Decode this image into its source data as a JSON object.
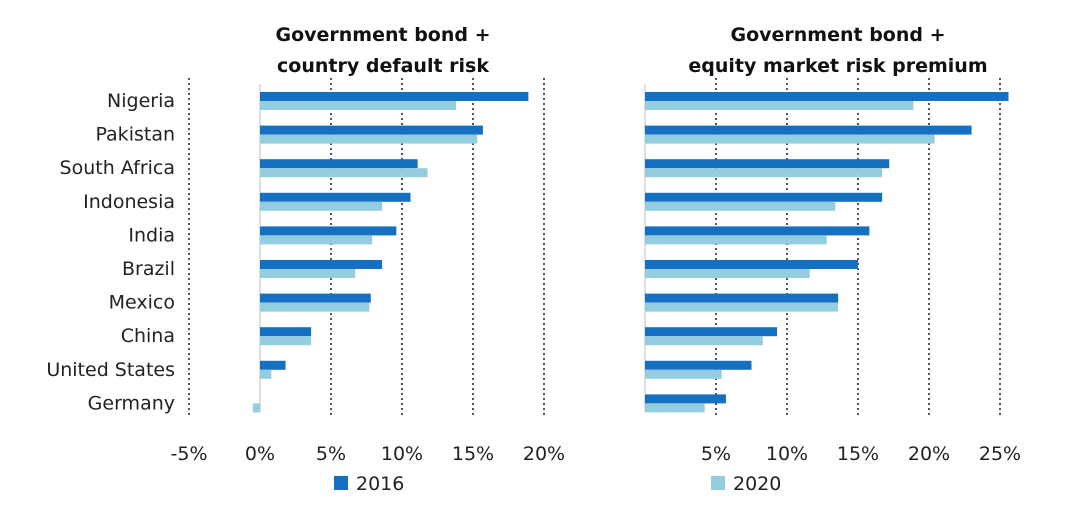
{
  "chart_data": [
    {
      "type": "bar",
      "orientation": "horizontal",
      "title": "Government bond +\ncountry default risk",
      "categories": [
        "Nigeria",
        "Pakistan",
        "South Africa",
        "Indonesia",
        "India",
        "Brazil",
        "Mexico",
        "China",
        "United States",
        "Germany"
      ],
      "series": [
        {
          "name": "2016",
          "color": "#1570c1",
          "values": [
            18.9,
            15.7,
            11.1,
            10.6,
            9.6,
            8.6,
            7.8,
            3.6,
            1.8,
            0.0
          ]
        },
        {
          "name": "2020",
          "color": "#93cddf",
          "values": [
            13.8,
            15.3,
            11.8,
            8.6,
            7.9,
            6.7,
            7.7,
            3.6,
            0.8,
            -0.5
          ]
        }
      ],
      "xlim": [
        -5,
        20
      ],
      "xticks": [
        -5,
        0,
        5,
        10,
        15,
        20
      ],
      "xtick_labels": [
        "-5%",
        "0%",
        "5%",
        "10%",
        "15%",
        "20%"
      ],
      "grid": true
    },
    {
      "type": "bar",
      "orientation": "horizontal",
      "title": "Government bond +\nequity market risk premium",
      "categories": [
        "Nigeria",
        "Pakistan",
        "South Africa",
        "Indonesia",
        "India",
        "Brazil",
        "Mexico",
        "China",
        "United States",
        "Germany"
      ],
      "series": [
        {
          "name": "2016",
          "color": "#1570c1",
          "values": [
            25.6,
            23.0,
            17.2,
            16.7,
            15.8,
            15.0,
            13.6,
            9.3,
            7.5,
            5.7
          ]
        },
        {
          "name": "2020",
          "color": "#93cddf",
          "values": [
            18.9,
            20.4,
            16.7,
            13.4,
            12.8,
            11.6,
            13.6,
            8.3,
            5.4,
            4.2
          ]
        }
      ],
      "xlim": [
        0,
        25
      ],
      "xticks": [
        0,
        5,
        10,
        15,
        20,
        25
      ],
      "xtick_labels": [
        "",
        "5%",
        "10%",
        "15%",
        "20%",
        "25%"
      ],
      "grid": true
    }
  ],
  "legend": {
    "placement": "bottom",
    "items": [
      {
        "label": "2016",
        "color": "#1570c1"
      },
      {
        "label": "2020",
        "color": "#93cddf"
      }
    ]
  }
}
